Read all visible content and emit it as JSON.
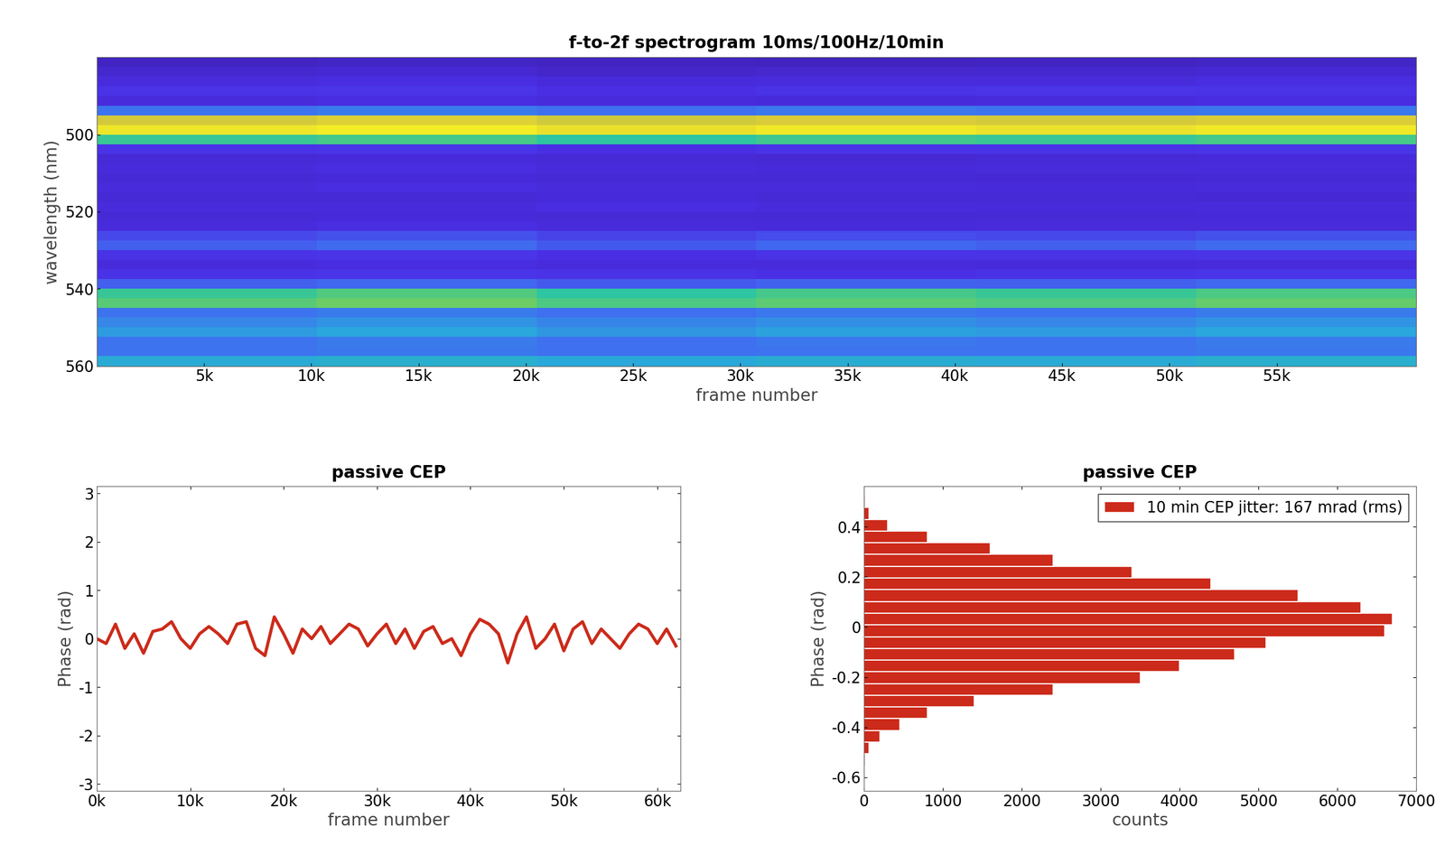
{
  "chart_data": [
    {
      "type": "heatmap",
      "title": "f-to-2f spectrogram 10ms/100Hz/10min",
      "x_label": "frame number",
      "y_label": "wavelength (nm)",
      "x_bins": [
        0,
        10250,
        20500,
        30750,
        41000,
        51250,
        61500
      ],
      "y_bins": [
        480,
        482.5,
        485,
        487.5,
        490,
        492.5,
        495,
        497.5,
        500,
        502.5,
        505,
        507.5,
        510,
        512.5,
        515,
        517.5,
        520,
        522.5,
        525,
        527.5,
        530,
        532.5,
        535,
        537.5,
        540,
        542.5,
        545,
        547.5,
        550,
        552.5,
        555,
        557.5,
        560
      ],
      "cells": [
        [
          0.05,
          0.06,
          0.05,
          0.04,
          0.05,
          0.06
        ],
        [
          0.08,
          0.09,
          0.07,
          0.08,
          0.08,
          0.09
        ],
        [
          0.12,
          0.13,
          0.11,
          0.12,
          0.12,
          0.13
        ],
        [
          0.15,
          0.16,
          0.14,
          0.15,
          0.16,
          0.15
        ],
        [
          0.12,
          0.13,
          0.12,
          0.11,
          0.12,
          0.13
        ],
        [
          0.3,
          0.32,
          0.29,
          0.31,
          0.3,
          0.31
        ],
        [
          0.85,
          0.88,
          0.84,
          0.86,
          0.85,
          0.87
        ],
        [
          0.95,
          0.97,
          0.93,
          0.96,
          0.94,
          0.96
        ],
        [
          0.6,
          0.62,
          0.58,
          0.61,
          0.6,
          0.62
        ],
        [
          0.15,
          0.16,
          0.14,
          0.15,
          0.15,
          0.16
        ],
        [
          0.1,
          0.11,
          0.1,
          0.09,
          0.1,
          0.11
        ],
        [
          0.12,
          0.13,
          0.12,
          0.11,
          0.12,
          0.12
        ],
        [
          0.1,
          0.11,
          0.1,
          0.1,
          0.09,
          0.1
        ],
        [
          0.12,
          0.13,
          0.12,
          0.12,
          0.11,
          0.12
        ],
        [
          0.1,
          0.1,
          0.11,
          0.1,
          0.1,
          0.09
        ],
        [
          0.12,
          0.12,
          0.13,
          0.12,
          0.11,
          0.12
        ],
        [
          0.1,
          0.11,
          0.1,
          0.1,
          0.1,
          0.11
        ],
        [
          0.12,
          0.13,
          0.12,
          0.11,
          0.12,
          0.12
        ],
        [
          0.2,
          0.22,
          0.19,
          0.21,
          0.2,
          0.22
        ],
        [
          0.25,
          0.28,
          0.24,
          0.27,
          0.25,
          0.28
        ],
        [
          0.15,
          0.16,
          0.14,
          0.15,
          0.15,
          0.16
        ],
        [
          0.12,
          0.13,
          0.12,
          0.12,
          0.11,
          0.12
        ],
        [
          0.15,
          0.16,
          0.15,
          0.14,
          0.15,
          0.16
        ],
        [
          0.25,
          0.27,
          0.24,
          0.26,
          0.25,
          0.27
        ],
        [
          0.6,
          0.64,
          0.58,
          0.62,
          0.6,
          0.63
        ],
        [
          0.65,
          0.68,
          0.63,
          0.66,
          0.64,
          0.67
        ],
        [
          0.3,
          0.32,
          0.29,
          0.31,
          0.3,
          0.32
        ],
        [
          0.35,
          0.38,
          0.34,
          0.37,
          0.35,
          0.38
        ],
        [
          0.4,
          0.43,
          0.39,
          0.42,
          0.4,
          0.43
        ],
        [
          0.3,
          0.32,
          0.29,
          0.31,
          0.3,
          0.32
        ],
        [
          0.3,
          0.31,
          0.29,
          0.3,
          0.3,
          0.31
        ],
        [
          0.45,
          0.47,
          0.44,
          0.46,
          0.45,
          0.47
        ]
      ],
      "clim": [
        0,
        1
      ],
      "xlim": [
        0,
        61500
      ],
      "ylim": [
        560,
        480
      ],
      "xticks": [
        {
          "value": 5000,
          "label": "5k"
        },
        {
          "value": 10000,
          "label": "10k"
        },
        {
          "value": 15000,
          "label": "15k"
        },
        {
          "value": 20000,
          "label": "20k"
        },
        {
          "value": 25000,
          "label": "25k"
        },
        {
          "value": 30000,
          "label": "30k"
        },
        {
          "value": 35000,
          "label": "35k"
        },
        {
          "value": 40000,
          "label": "40k"
        },
        {
          "value": 45000,
          "label": "45k"
        },
        {
          "value": 50000,
          "label": "50k"
        },
        {
          "value": 55000,
          "label": "55k"
        }
      ],
      "yticks": [
        500,
        520,
        540,
        560
      ]
    },
    {
      "type": "line",
      "title": "passive CEP",
      "x_label": "frame number",
      "y_label": "Phase (rad)",
      "x": [
        0,
        1000,
        2000,
        3000,
        4000,
        5000,
        6000,
        7000,
        8000,
        9000,
        10000,
        11000,
        12000,
        13000,
        14000,
        15000,
        16000,
        17000,
        18000,
        19000,
        20000,
        21000,
        22000,
        23000,
        24000,
        25000,
        26000,
        27000,
        28000,
        29000,
        30000,
        31000,
        32000,
        33000,
        34000,
        35000,
        36000,
        37000,
        38000,
        39000,
        40000,
        41000,
        42000,
        43000,
        44000,
        45000,
        46000,
        47000,
        48000,
        49000,
        50000,
        51000,
        52000,
        53000,
        54000,
        55000,
        56000,
        57000,
        58000,
        59000,
        60000,
        61000,
        62000
      ],
      "values": [
        0.0,
        -0.1,
        0.3,
        -0.2,
        0.1,
        -0.3,
        0.15,
        0.2,
        0.35,
        0.0,
        -0.2,
        0.1,
        0.25,
        0.1,
        -0.1,
        0.3,
        0.35,
        -0.2,
        -0.35,
        0.45,
        0.1,
        -0.3,
        0.2,
        0.0,
        0.25,
        -0.1,
        0.1,
        0.3,
        0.2,
        -0.15,
        0.1,
        0.3,
        -0.1,
        0.2,
        -0.2,
        0.15,
        0.25,
        -0.1,
        0.0,
        -0.35,
        0.1,
        0.4,
        0.3,
        0.1,
        -0.5,
        0.1,
        0.45,
        -0.2,
        0.0,
        0.3,
        -0.25,
        0.2,
        0.35,
        -0.1,
        0.2,
        0.0,
        -0.2,
        0.1,
        0.3,
        0.2,
        -0.1,
        0.2,
        -0.15
      ],
      "color": "#cc2a1a",
      "xlim": [
        0,
        62500
      ],
      "ylim": [
        -3.14,
        3.14
      ],
      "xticks": [
        {
          "value": 0,
          "label": "0k"
        },
        {
          "value": 10000,
          "label": "10k"
        },
        {
          "value": 20000,
          "label": "20k"
        },
        {
          "value": 30000,
          "label": "30k"
        },
        {
          "value": 40000,
          "label": "40k"
        },
        {
          "value": 50000,
          "label": "50k"
        },
        {
          "value": 60000,
          "label": "60k"
        }
      ],
      "yticks": [
        -3,
        -2,
        -1,
        0,
        1,
        2,
        3
      ]
    },
    {
      "type": "histogram",
      "orientation": "horizontal",
      "title": "passive CEP",
      "x_label": "counts",
      "y_label": "Phase (rad)",
      "series": [
        {
          "name": "10 min CEP jitter: 167 mrad (rms)",
          "color": "#cc2a1a",
          "bins": [
            -0.553,
            -0.506,
            -0.46,
            -0.413,
            -0.366,
            -0.319,
            -0.273,
            -0.226,
            -0.179,
            -0.132,
            -0.085,
            -0.039,
            0.008,
            0.055,
            0.102,
            0.149,
            0.195,
            0.242,
            0.289,
            0.336,
            0.383,
            0.429,
            0.476,
            0.523
          ],
          "counts": [
            10,
            60,
            200,
            450,
            800,
            1400,
            2400,
            3500,
            4000,
            4700,
            5100,
            6600,
            6700,
            6300,
            5500,
            4400,
            3400,
            2400,
            1600,
            800,
            300,
            60,
            10
          ]
        }
      ],
      "legend": "upper right",
      "xlim": [
        0,
        7000
      ],
      "ylim": [
        -0.654,
        0.56
      ],
      "xticks": [
        0,
        1000,
        2000,
        3000,
        4000,
        5000,
        6000,
        7000
      ],
      "yticks": [
        -0.6,
        -0.4,
        -0.2,
        0,
        0.2,
        0.4
      ]
    }
  ]
}
